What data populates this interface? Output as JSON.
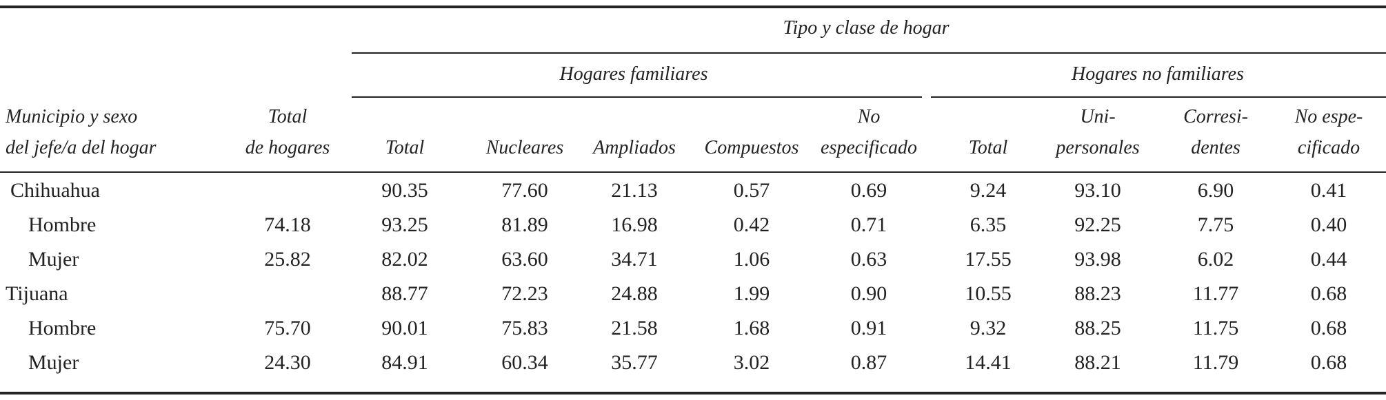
{
  "table": {
    "title": "Tipo y clase de hogar",
    "groups": [
      "Hogares familiares",
      "Hogares no familiares"
    ],
    "columns": [
      [
        "Municipio y sexo",
        "del jefe/a del hogar"
      ],
      [
        "Total",
        "de hogares"
      ],
      [
        "Total"
      ],
      [
        "Nucleares"
      ],
      [
        "Ampliados"
      ],
      [
        "Compuestos"
      ],
      [
        "No",
        "especificado"
      ],
      [
        "Total"
      ],
      [
        "Uni-",
        "personales"
      ],
      [
        "Corresi-",
        "dentes"
      ],
      [
        "No espe-",
        "cificado"
      ]
    ],
    "rows": [
      [
        "Chihuahua",
        null,
        "90.35",
        "77.60",
        "21.13",
        "0.57",
        "0.69",
        "9.24",
        "93.10",
        "6.90",
        "0.41"
      ],
      [
        "Hombre",
        "74.18",
        "93.25",
        "81.89",
        "16.98",
        "0.42",
        "0.71",
        "6.35",
        "92.25",
        "7.75",
        "0.40"
      ],
      [
        "Mujer",
        "25.82",
        "82.02",
        "63.60",
        "34.71",
        "1.06",
        "0.63",
        "17.55",
        "93.98",
        "6.02",
        "0.44"
      ],
      [
        "Tijuana",
        null,
        "88.77",
        "72.23",
        "24.88",
        "1.99",
        "0.90",
        "10.55",
        "88.23",
        "11.77",
        "0.68"
      ],
      [
        "Hombre",
        "75.70",
        "90.01",
        "75.83",
        "21.58",
        "1.68",
        "0.91",
        "9.32",
        "88.25",
        "11.75",
        "0.68"
      ],
      [
        "Mujer",
        "24.30",
        "84.91",
        "60.34",
        "35.77",
        "3.02",
        "0.87",
        "14.41",
        "88.21",
        "11.79",
        "0.68"
      ]
    ]
  }
}
